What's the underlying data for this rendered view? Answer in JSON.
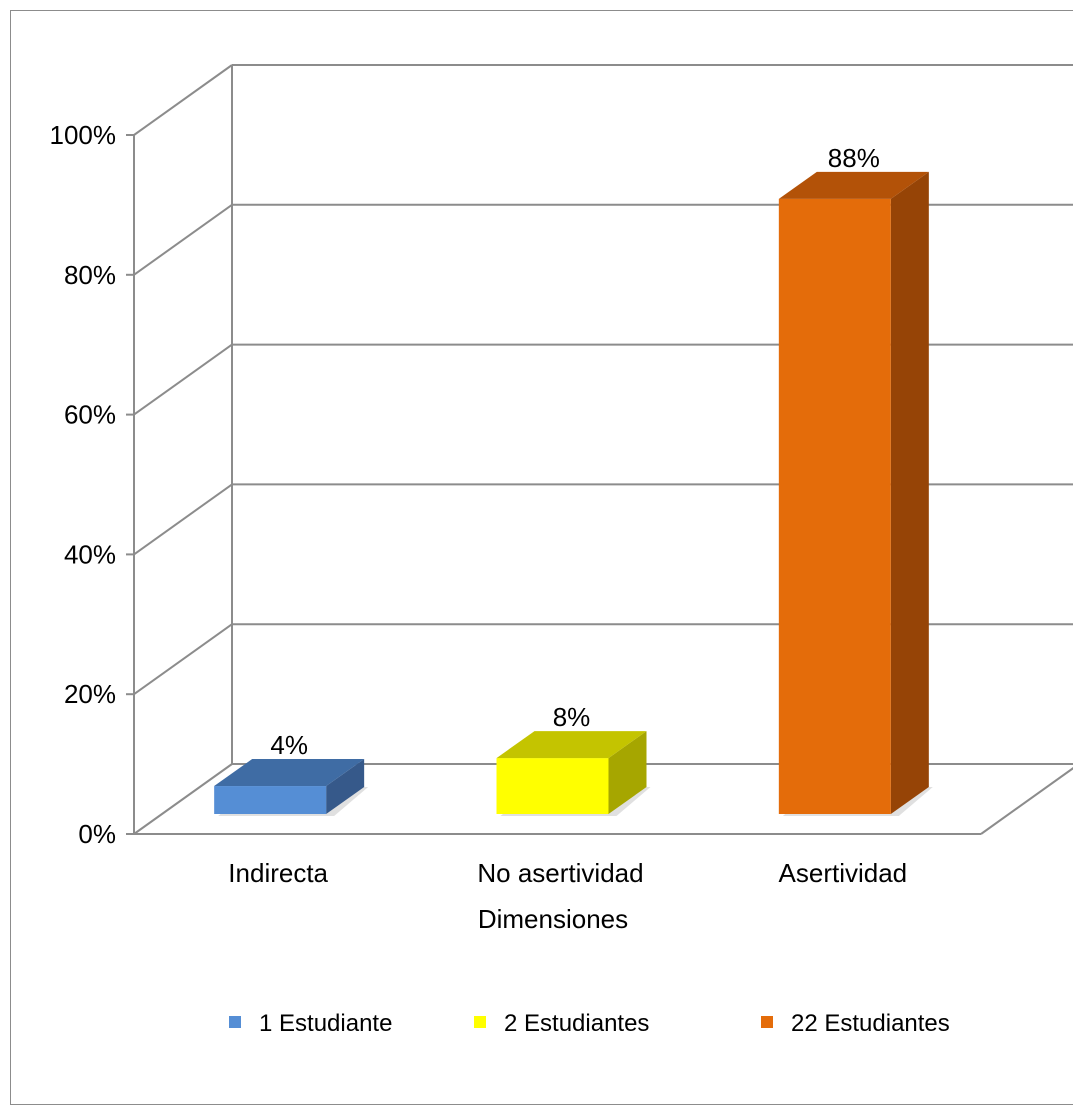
{
  "chart_data": {
    "type": "bar",
    "categories": [
      "Indirecta",
      "No asertividad",
      "Asertividad"
    ],
    "values": [
      4,
      8,
      88
    ],
    "data_labels": [
      "4%",
      "8%",
      "88%"
    ],
    "xlabel": "Dimensiones",
    "ylabel": "",
    "ylim": [
      0,
      100
    ],
    "y_ticks": [
      0,
      20,
      40,
      60,
      80,
      100
    ],
    "y_tick_labels": [
      "0%",
      "20%",
      "40%",
      "60%",
      "80%",
      "100%"
    ],
    "grid": true,
    "style": "3d-column",
    "legend": {
      "placement": "bottom",
      "entries": [
        "1 Estudiante",
        "2 Estudiantes",
        "22 Estudiantes"
      ]
    },
    "colors": {
      "front": [
        "#558ed5",
        "#ffff00",
        "#e46c0a"
      ],
      "top": [
        "#3f6ca4",
        "#c4c400",
        "#b35208"
      ],
      "side": [
        "#36598a",
        "#a6a600",
        "#964406"
      ],
      "grid": "#8c8c8c"
    }
  }
}
